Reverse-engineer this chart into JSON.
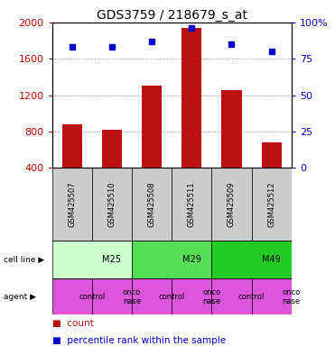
{
  "title": "GDS3759 / 218679_s_at",
  "samples": [
    "GSM425507",
    "GSM425510",
    "GSM425508",
    "GSM425511",
    "GSM425509",
    "GSM425512"
  ],
  "counts": [
    880,
    820,
    1310,
    1940,
    1260,
    680
  ],
  "percentiles": [
    83,
    83,
    87,
    96,
    85,
    80
  ],
  "ylim_left": [
    400,
    2000
  ],
  "ylim_right": [
    0,
    100
  ],
  "yticks_left": [
    400,
    800,
    1200,
    1600,
    2000
  ],
  "yticks_right": [
    0,
    25,
    50,
    75,
    100
  ],
  "bar_color": "#bb1111",
  "dot_color": "#0000cc",
  "sample_bg": "#cccccc",
  "cell_lines": [
    {
      "label": "M25",
      "span": [
        0,
        2
      ],
      "color": "#ccffcc"
    },
    {
      "label": "M29",
      "span": [
        2,
        4
      ],
      "color": "#55dd55"
    },
    {
      "label": "M49",
      "span": [
        4,
        6
      ],
      "color": "#22cc22"
    }
  ],
  "agents": [
    {
      "label": "control",
      "span": [
        0,
        1
      ]
    },
    {
      "label": "onco\nnase",
      "span": [
        1,
        2
      ]
    },
    {
      "label": "control",
      "span": [
        2,
        3
      ]
    },
    {
      "label": "onco\nnase",
      "span": [
        3,
        4
      ]
    },
    {
      "label": "control",
      "span": [
        4,
        5
      ]
    },
    {
      "label": "onco\nnase",
      "span": [
        5,
        6
      ]
    }
  ],
  "agent_color": "#dd55dd",
  "cell_line_label": "cell line",
  "agent_label": "agent",
  "legend_count": "count",
  "legend_percentile": "percentile rank within the sample",
  "grid_color": "#888888",
  "left_axis_color": "#cc0000",
  "right_axis_color": "#0000cc",
  "title_fontsize": 10,
  "tick_fontsize": 8,
  "bar_label_fontsize": 6,
  "table_fontsize": 7,
  "legend_fontsize": 7.5
}
